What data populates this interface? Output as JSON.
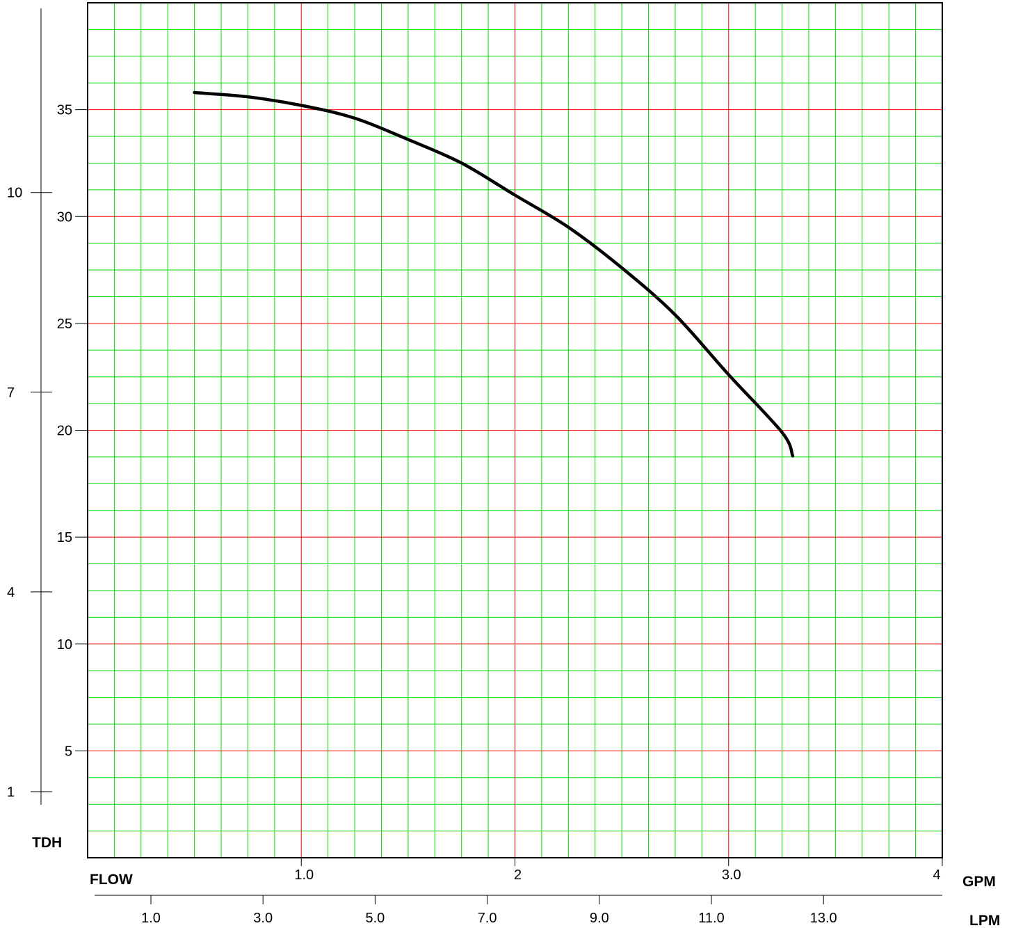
{
  "chart_data": {
    "type": "line",
    "title": "",
    "x_axis": {
      "label": "FLOW",
      "unit_label": "GPM",
      "range": [
        0,
        4
      ],
      "tick_values": [
        1,
        2,
        3,
        4
      ],
      "tick_labels": [
        "1.0",
        "2",
        "3.0",
        "4"
      ],
      "major_grid_step": 1,
      "minor_grid_step": 0.125
    },
    "x2_axis": {
      "unit_label": "LPM",
      "tick_values": [
        1,
        3,
        5,
        7,
        9,
        11,
        13
      ],
      "tick_labels": [
        "1.0",
        "3.0",
        "5.0",
        "7.0",
        "9.0",
        "11.0",
        "13.0"
      ]
    },
    "y_axis": {
      "label": "TDH",
      "range": [
        0,
        40
      ],
      "tick_values": [
        5,
        10,
        15,
        20,
        25,
        30,
        35
      ],
      "tick_labels": [
        "5",
        "10",
        "15",
        "20",
        "25",
        "30",
        "35"
      ],
      "major_grid_step": 5,
      "minor_grid_step": 1.25
    },
    "y2_axis": {
      "tick_values": [
        1,
        4,
        7,
        10
      ],
      "tick_labels": [
        "1",
        "4",
        "7",
        "10"
      ]
    },
    "grid": true,
    "colors": {
      "major_grid": "#ff0000",
      "minor_grid": "#00dd00",
      "curve": "#000000"
    },
    "series": [
      {
        "x": [
          0.5,
          0.75,
          1.0,
          1.25,
          1.5,
          1.75,
          2.0,
          2.25,
          2.5,
          2.75,
          3.0,
          3.25,
          3.3
        ],
        "values": [
          35.8,
          35.6,
          35.2,
          34.6,
          33.6,
          32.5,
          31.0,
          29.5,
          27.6,
          25.4,
          22.6,
          19.9,
          18.8
        ]
      }
    ]
  }
}
